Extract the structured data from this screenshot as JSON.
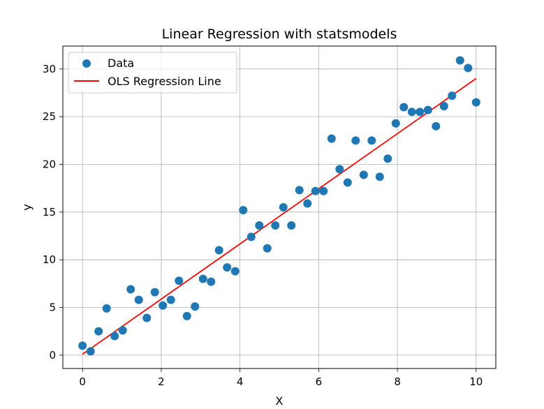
{
  "chart_data": {
    "type": "scatter",
    "title": "Linear Regression with statsmodels",
    "xlabel": "X",
    "ylabel": "y",
    "xlim": [
      -0.5,
      10.5
    ],
    "ylim": [
      -1.4,
      32.4
    ],
    "xticks": [
      0,
      2,
      4,
      6,
      8,
      10
    ],
    "yticks": [
      0,
      5,
      10,
      15,
      20,
      25,
      30
    ],
    "grid": true,
    "legend_position": "top-left",
    "legend": [
      "Data",
      "OLS Regression Line"
    ],
    "series": [
      {
        "name": "Data",
        "kind": "scatter",
        "color": "#1f77b4",
        "x": [
          0,
          0.204,
          0.408,
          0.612,
          0.816,
          1.02,
          1.224,
          1.429,
          1.633,
          1.837,
          2.041,
          2.245,
          2.449,
          2.653,
          2.857,
          3.061,
          3.265,
          3.469,
          3.673,
          3.878,
          4.082,
          4.286,
          4.49,
          4.694,
          4.898,
          5.102,
          5.306,
          5.51,
          5.714,
          5.918,
          6.122,
          6.327,
          6.531,
          6.735,
          6.939,
          7.143,
          7.347,
          7.551,
          7.755,
          7.959,
          8.163,
          8.367,
          8.571,
          8.776,
          8.98,
          9.184,
          9.388,
          9.592,
          9.796,
          10
        ],
        "y": [
          1.0,
          0.4,
          2.5,
          4.9,
          2.0,
          2.6,
          6.9,
          5.8,
          3.9,
          6.6,
          5.2,
          5.8,
          7.8,
          4.1,
          5.1,
          8.0,
          7.7,
          11.0,
          9.2,
          8.8,
          15.2,
          12.4,
          13.6,
          11.2,
          13.6,
          15.5,
          13.6,
          17.3,
          15.9,
          17.2,
          17.2,
          22.7,
          19.5,
          18.1,
          22.5,
          18.9,
          22.5,
          18.7,
          20.6,
          24.3,
          26.0,
          25.5,
          25.5,
          25.7,
          24.0,
          26.1,
          27.2,
          30.9,
          30.1,
          26.5
        ]
      },
      {
        "name": "OLS Regression Line",
        "kind": "line",
        "color": "#ff0000",
        "x": [
          0,
          10
        ],
        "y": [
          0.1,
          29.0
        ]
      }
    ]
  }
}
